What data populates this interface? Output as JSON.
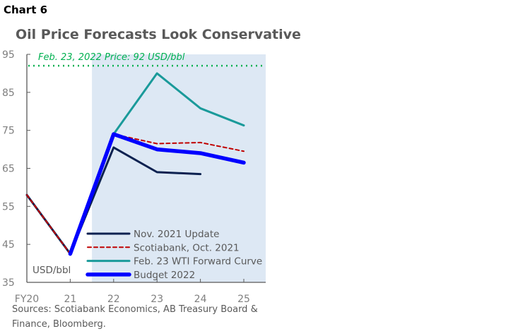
{
  "chart_label": "Chart 6",
  "chart_data": {
    "type": "line",
    "title": "Oil Price Forecasts Look Conservative",
    "ylabel": "USD/bbl",
    "xlabel": "",
    "categories": [
      "FY20",
      "21",
      "22",
      "23",
      "24",
      "25"
    ],
    "ylim": [
      35,
      95
    ],
    "yticks": [
      35,
      45,
      55,
      65,
      75,
      85,
      95
    ],
    "shaded_forecast_from": "21.5",
    "reference_line": {
      "value": 92,
      "label": "Feb. 23, 2022 Price: 92 USD/bbl",
      "color": "#00b050"
    },
    "series": [
      {
        "name": "Nov. 2021 Update",
        "color": "#0c2150",
        "style": "solid",
        "values": [
          58,
          42.5,
          70.5,
          64,
          63.5,
          null
        ]
      },
      {
        "name": "Scotiabank, Oct. 2021",
        "color": "#c00000",
        "style": "dashed",
        "values": [
          58,
          42.5,
          74,
          71.5,
          71.8,
          69.5
        ]
      },
      {
        "name": "Feb. 23 WTI Forward Curve",
        "color": "#1a9a9a",
        "style": "solid",
        "values": [
          null,
          null,
          74,
          90,
          80.8,
          76.3
        ]
      },
      {
        "name": "Budget 2022",
        "color": "#0000ff",
        "style": "thick",
        "values": [
          null,
          42.5,
          74,
          70,
          69,
          66.5
        ]
      }
    ],
    "legend_position": "bottom-center",
    "grid": false,
    "source": "Sources: Scotiabank Economics, AB Treasury Board & Finance, Bloomberg."
  }
}
